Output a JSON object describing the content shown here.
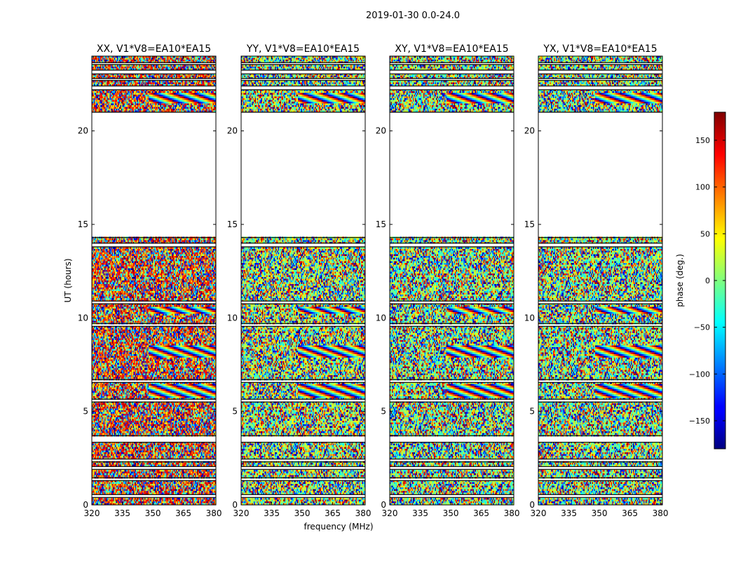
{
  "figure_title": "2019-01-30 0.0-24.0",
  "colors": {
    "background": "#ffffff",
    "axes": "#000000",
    "flagged": "#ffffff",
    "gap_line": "#000000"
  },
  "chart_data": {
    "type": "heatmap",
    "title": "2019-01-30 0.0-24.0",
    "xlabel": "frequency (MHz)",
    "ylabel": "UT (hours)",
    "xlim": [
      320,
      381
    ],
    "ylim": [
      0,
      24
    ],
    "xticks": [
      320,
      335,
      350,
      365,
      380
    ],
    "yticks": [
      0,
      5,
      10,
      15,
      20
    ],
    "colorbar": {
      "label": "phase (deg.)",
      "range": [
        -180,
        180
      ],
      "ticks": [
        -150,
        -100,
        -50,
        0,
        50,
        100,
        150
      ],
      "colormap": "jet"
    },
    "panels": [
      {
        "title": "XX, V1*V8=EA10*EA15",
        "polarization": "XX",
        "bias_phase": 120
      },
      {
        "title": "YY, V1*V8=EA10*EA15",
        "polarization": "YY",
        "bias_phase": 10
      },
      {
        "title": "XY, V1*V8=EA10*EA15",
        "polarization": "XY",
        "bias_phase": 0
      },
      {
        "title": "YX, V1*V8=EA10*EA15",
        "polarization": "YX",
        "bias_phase": 0
      }
    ],
    "data_bands_ut": [
      [
        0.0,
        0.4
      ],
      [
        0.55,
        1.3
      ],
      [
        1.45,
        1.9
      ],
      [
        2.05,
        2.3
      ],
      [
        2.45,
        3.35
      ],
      [
        3.7,
        5.5
      ],
      [
        5.65,
        6.55
      ],
      [
        6.7,
        9.55
      ],
      [
        9.7,
        10.75
      ],
      [
        10.9,
        13.8
      ],
      [
        14.0,
        14.3
      ],
      [
        21.0,
        22.2
      ],
      [
        22.4,
        22.7
      ],
      [
        22.8,
        23.05
      ],
      [
        23.25,
        23.55
      ],
      [
        23.65,
        24.0
      ]
    ],
    "flagged_ut": [
      [
        0.4,
        0.55
      ],
      [
        1.3,
        1.45
      ],
      [
        1.9,
        2.05
      ],
      [
        2.3,
        2.45
      ],
      [
        3.35,
        3.7
      ],
      [
        5.5,
        5.65
      ],
      [
        6.55,
        6.7
      ],
      [
        9.55,
        9.7
      ],
      [
        10.75,
        10.9
      ],
      [
        13.8,
        14.0
      ],
      [
        14.3,
        21.0
      ],
      [
        22.2,
        22.4
      ],
      [
        22.7,
        22.8
      ],
      [
        23.05,
        23.25
      ],
      [
        23.55,
        23.65
      ]
    ],
    "fringe_bands_ut": [
      [
        5.7,
        6.5
      ],
      [
        7.9,
        8.5
      ],
      [
        10.2,
        10.6
      ],
      [
        21.5,
        22.0
      ]
    ]
  }
}
